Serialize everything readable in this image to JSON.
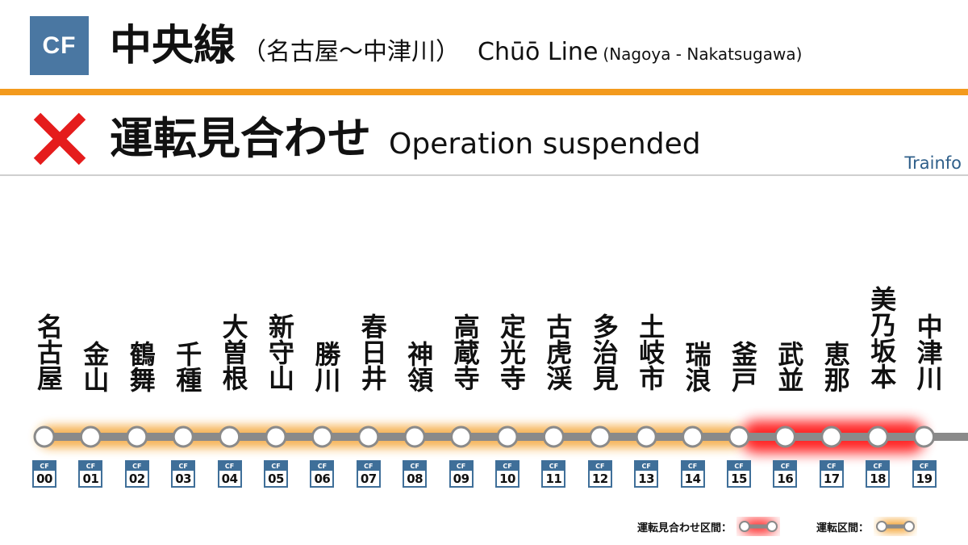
{
  "header": {
    "line_code": "CF",
    "line_name_jp": "中央線",
    "section_jp": "（名古屋〜中津川）",
    "line_name_en": "Chūō Line",
    "section_en": "(Nagoya - Nakatsugawa)"
  },
  "status": {
    "text_jp": "運転見合わせ",
    "text_en": "Operation suspended"
  },
  "provider": "Trainfo",
  "colors": {
    "badge": "#4a77a2",
    "orange": "#f39a1d",
    "suspended": "#ff0000",
    "track": "#8a8a8a",
    "station_dot": "#ffffff",
    "code_blue": "#3f6f99",
    "x_mark": "#e51c1c"
  },
  "stations": [
    {
      "name": "名古屋",
      "code": "00"
    },
    {
      "name": "金山",
      "code": "01"
    },
    {
      "name": "鶴舞",
      "code": "02"
    },
    {
      "name": "千種",
      "code": "03"
    },
    {
      "name": "大曽根",
      "code": "04"
    },
    {
      "name": "新守山",
      "code": "05"
    },
    {
      "name": "勝川",
      "code": "06"
    },
    {
      "name": "春日井",
      "code": "07"
    },
    {
      "name": "神領",
      "code": "08"
    },
    {
      "name": "高蔵寺",
      "code": "09"
    },
    {
      "name": "定光寺",
      "code": "10"
    },
    {
      "name": "古虎渓",
      "code": "11"
    },
    {
      "name": "多治見",
      "code": "12"
    },
    {
      "name": "土岐市",
      "code": "13"
    },
    {
      "name": "瑞浪",
      "code": "14"
    },
    {
      "name": "釜戸",
      "code": "15"
    },
    {
      "name": "武並",
      "code": "16"
    },
    {
      "name": "恵那",
      "code": "17"
    },
    {
      "name": "美乃坂本",
      "code": "18"
    },
    {
      "name": "中津川",
      "code": "19"
    }
  ],
  "sections": {
    "operating": {
      "from": 0,
      "to": 15
    },
    "suspended": {
      "from": 15,
      "to": 19
    }
  },
  "legend": {
    "suspended_label": "運転見合わせ区間：",
    "operating_label": "運転区間："
  }
}
